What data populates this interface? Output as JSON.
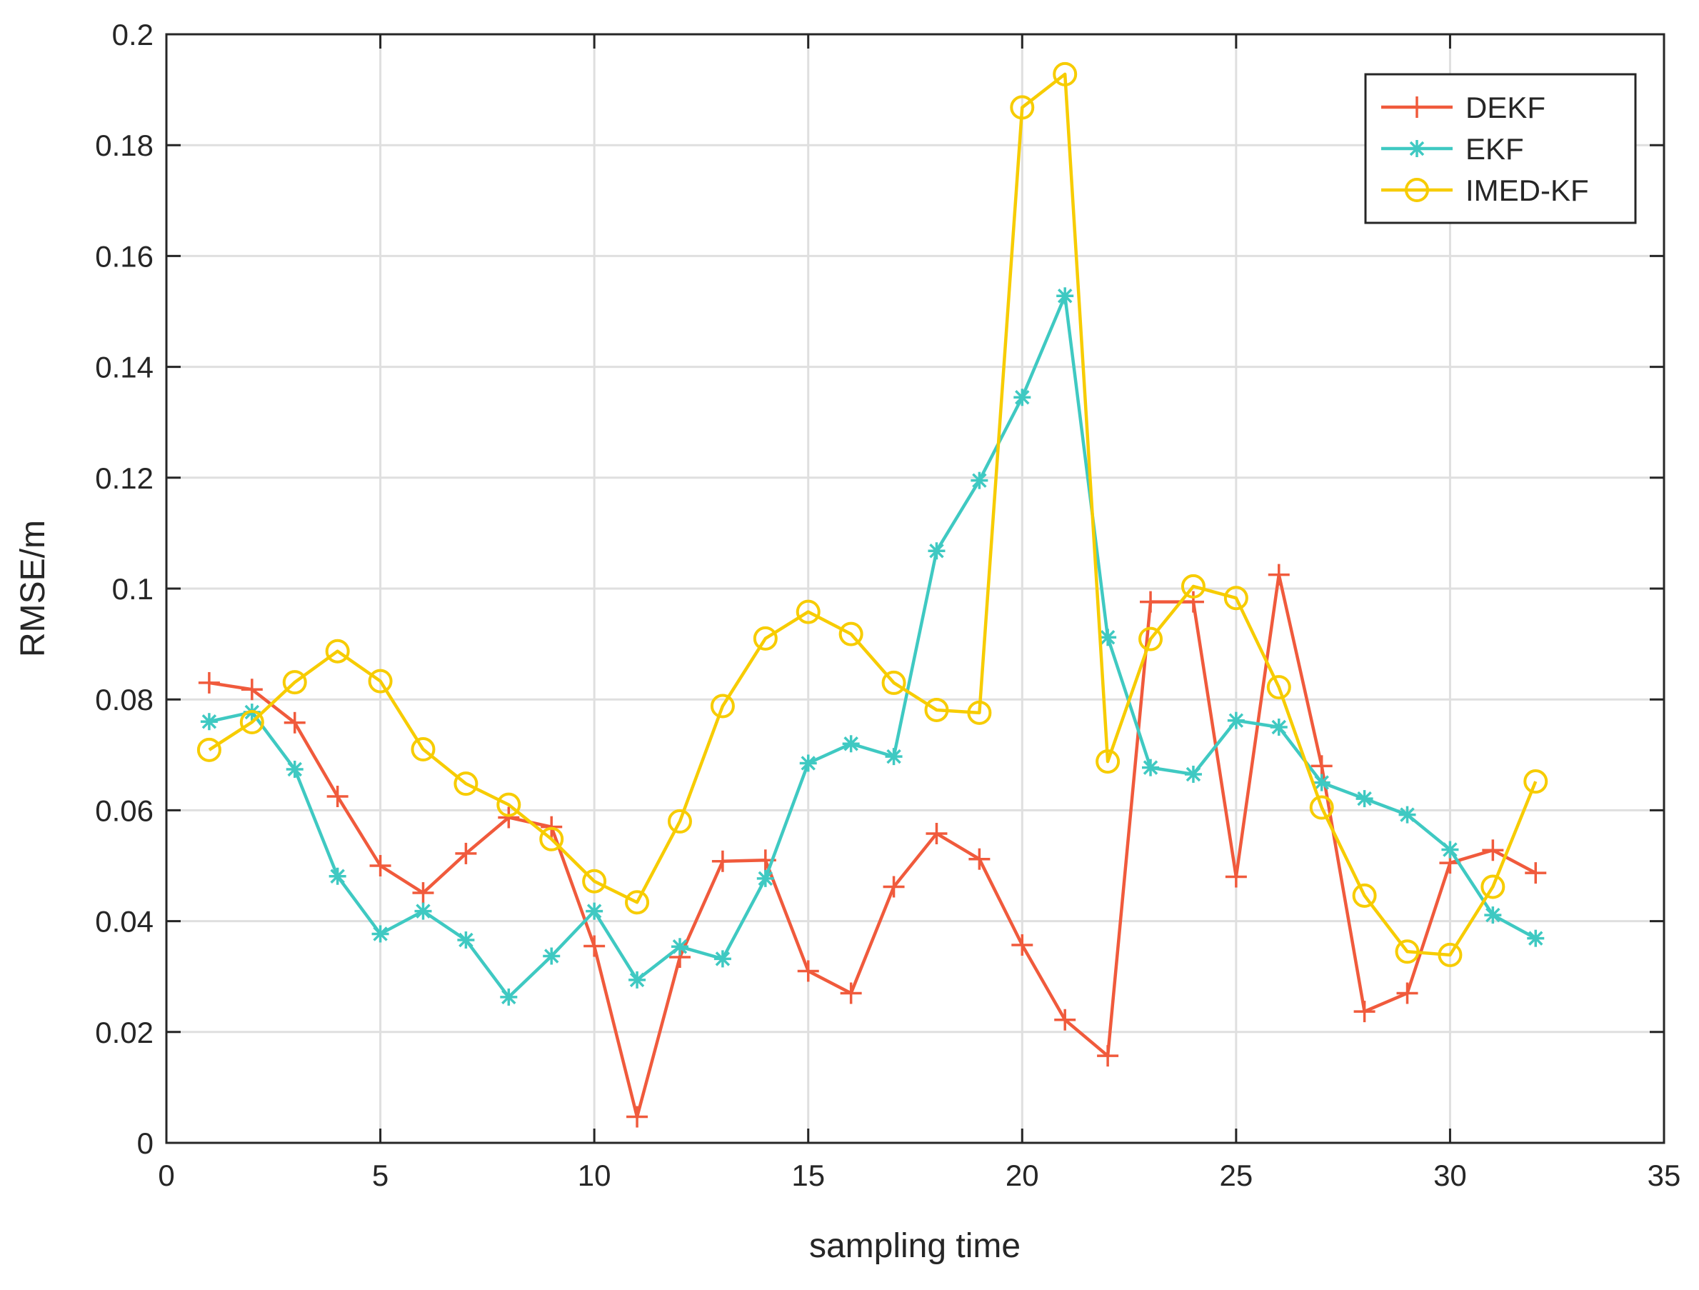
{
  "chart_data": {
    "type": "line",
    "title": "",
    "xlabel": "sampling time",
    "ylabel": "RMSE/m",
    "xlim": [
      0,
      35
    ],
    "ylim": [
      0,
      0.2
    ],
    "xticks": [
      0,
      5,
      10,
      15,
      20,
      25,
      30,
      35
    ],
    "xtick_labels": [
      "0",
      "5",
      "10",
      "15",
      "20",
      "25",
      "30",
      "35"
    ],
    "yticks": [
      0,
      0.02,
      0.04,
      0.06,
      0.08,
      0.1,
      0.12,
      0.14,
      0.16,
      0.18,
      0.2
    ],
    "ytick_labels": [
      "0",
      "0.02",
      "0.04",
      "0.06",
      "0.08",
      "0.1",
      "0.12",
      "0.14",
      "0.16",
      "0.18",
      "0.2"
    ],
    "grid": true,
    "legend_position": "top-right",
    "x": [
      1,
      2,
      3,
      4,
      5,
      6,
      7,
      8,
      9,
      10,
      11,
      12,
      13,
      14,
      15,
      16,
      17,
      18,
      19,
      20,
      21,
      22,
      23,
      24,
      25,
      26,
      27,
      28,
      29,
      30,
      31,
      32
    ],
    "series": [
      {
        "name": "DEKF",
        "color": "#f05a3c",
        "marker": "plus",
        "values": [
          0.083,
          0.0818,
          0.0758,
          0.0625,
          0.05,
          0.0451,
          0.0522,
          0.0587,
          0.057,
          0.0355,
          0.0047,
          0.0335,
          0.0508,
          0.051,
          0.031,
          0.027,
          0.0462,
          0.0558,
          0.0512,
          0.0357,
          0.0222,
          0.0157,
          0.0976,
          0.0976,
          0.048,
          0.1025,
          0.068,
          0.0237,
          0.027,
          0.0505,
          0.0528,
          0.0487
        ]
      },
      {
        "name": "EKF",
        "color": "#3fc9c2",
        "marker": "asterisk",
        "values": [
          0.076,
          0.0777,
          0.0674,
          0.0481,
          0.0377,
          0.0418,
          0.0366,
          0.0263,
          0.0337,
          0.0418,
          0.0294,
          0.0354,
          0.0332,
          0.0477,
          0.0685,
          0.072,
          0.0697,
          0.1068,
          0.1195,
          0.1345,
          0.1528,
          0.0912,
          0.0677,
          0.0665,
          0.0762,
          0.075,
          0.065,
          0.0621,
          0.0592,
          0.0529,
          0.0411,
          0.0369
        ]
      },
      {
        "name": "IMED-KF",
        "color": "#f7cc00",
        "marker": "circle",
        "values": [
          0.0709,
          0.0759,
          0.0831,
          0.0887,
          0.0833,
          0.071,
          0.0648,
          0.061,
          0.0548,
          0.0472,
          0.0434,
          0.058,
          0.0788,
          0.091,
          0.0958,
          0.0918,
          0.083,
          0.0781,
          0.0776,
          0.1868,
          0.1928,
          0.0688,
          0.0909,
          0.1004,
          0.0983,
          0.0822,
          0.0605,
          0.0446,
          0.0345,
          0.0339,
          0.0462,
          0.0652
        ]
      }
    ]
  }
}
